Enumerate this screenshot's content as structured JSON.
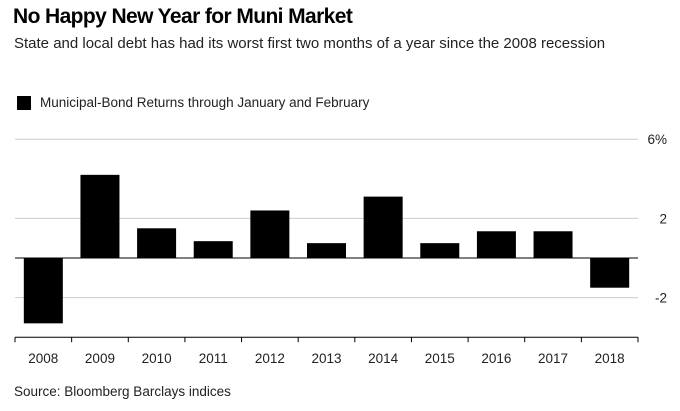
{
  "title": "No Happy New Year for Muni Market",
  "subtitle": "State and local debt has had its worst first two months of a year since the 2008 recession",
  "source": "Source: Bloomberg Barclays indices",
  "colors": {
    "bar": "#000000",
    "gridline": "#cccccc",
    "zero_line": "#000000",
    "text": "#222222"
  },
  "chart_data": {
    "type": "bar",
    "title": "No Happy New Year for Muni Market",
    "xlabel": "",
    "ylabel": "",
    "legend": {
      "position": "top-left",
      "entries": [
        "Municipal-Bond Returns through January and February"
      ]
    },
    "series": [
      {
        "name": "Municipal-Bond Returns through January and February",
        "values": [
          -3.3,
          4.2,
          1.5,
          0.85,
          2.4,
          0.75,
          3.1,
          0.75,
          1.35,
          1.35,
          -1.5
        ]
      }
    ],
    "categories": [
      "2008",
      "2009",
      "2010",
      "2011",
      "2012",
      "2013",
      "2014",
      "2015",
      "2016",
      "2017",
      "2018"
    ],
    "ylim": [
      -4,
      6
    ],
    "yticks": [
      6,
      2,
      -2
    ],
    "ytick_labels": [
      "6%",
      "2",
      "-2"
    ],
    "y_axis_side": "right",
    "grid": true
  }
}
